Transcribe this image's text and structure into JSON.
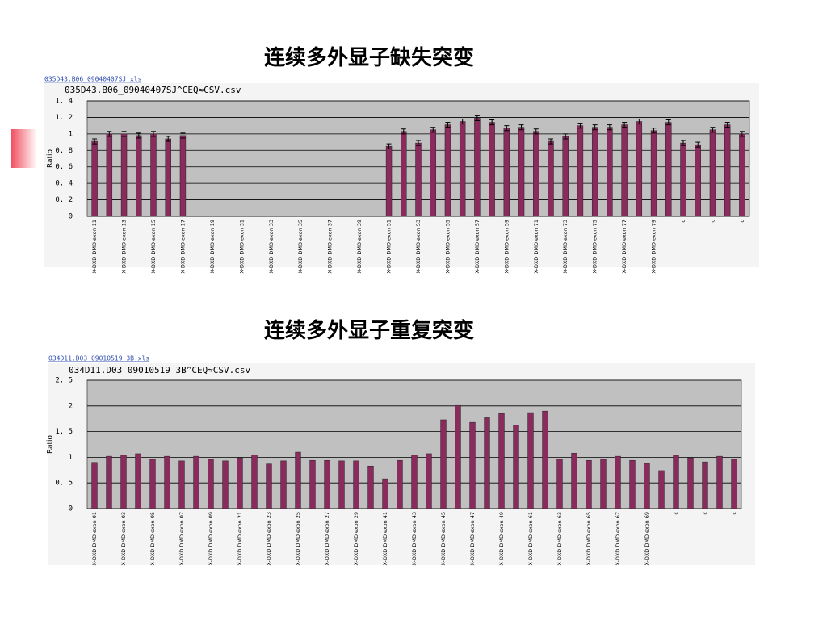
{
  "chart_data": [
    {
      "type": "bar",
      "title": "连续多外显子缺失突变",
      "file_link": "035D43.B06_09040407SJ.xls",
      "subtitle": "035D43.B06_09040407SJ^CEQ≈CSV.csv",
      "y_label": "Ratio",
      "color": "#8b2a5c",
      "categories": [
        "X-DXD DMD exon 11",
        null,
        "X-DXD DMD exon 13",
        null,
        "X-DXD DMD exon 15",
        null,
        "X-DXD DMD exon 17",
        null,
        "X-DXD DMD exon 19",
        null,
        "X-DXD DMD exon 31",
        null,
        "X-DXD DMD exon 33",
        null,
        "X-DXD DMD exon 35",
        null,
        "X-DXD DMD exon 37",
        null,
        "X-DXD DMD exon 39",
        null,
        "X-DXD DMD exon 51",
        null,
        "X-DXD DMD exon 53",
        null,
        "X-DXD DMD exon 55",
        null,
        "X-DXD DMD exon 57",
        null,
        "X-DXD DMD exon 59",
        null,
        "X-DXD DMD exon 71",
        null,
        "X-DXD DMD exon 73",
        null,
        "X-DXD DMD exon 75",
        null,
        "X-DXD DMD exon 77",
        null,
        "X-DXD DMD exon 79",
        null,
        "c",
        null,
        "c",
        null,
        "c"
      ],
      "values": [
        0.91,
        1.0,
        1.0,
        0.98,
        1.0,
        0.94,
        0.98,
        null,
        null,
        null,
        null,
        null,
        null,
        null,
        null,
        null,
        null,
        null,
        null,
        null,
        0.85,
        1.03,
        0.89,
        1.05,
        1.11,
        1.15,
        1.19,
        1.14,
        1.07,
        1.08,
        1.03,
        0.91,
        0.97,
        1.1,
        1.08,
        1.08,
        1.11,
        1.15,
        1.04,
        1.14,
        0.89,
        0.87,
        1.05,
        1.11,
        1.0
      ],
      "errors": [
        0.03,
        0.03,
        0.03,
        0.03,
        0.03,
        0.03,
        0.03,
        null,
        null,
        null,
        null,
        null,
        null,
        null,
        null,
        null,
        null,
        null,
        null,
        null,
        0.03,
        0.03,
        0.03,
        0.03,
        0.03,
        0.03,
        0.03,
        0.03,
        0.03,
        0.03,
        0.03,
        0.03,
        0.03,
        0.03,
        0.03,
        0.03,
        0.03,
        0.03,
        0.03,
        0.03,
        0.03,
        0.03,
        0.03,
        0.03,
        0.03
      ],
      "ylim": [
        0,
        1.4
      ],
      "yticks": [
        0,
        {
          "value": 0.2,
          "label": "0. 2"
        },
        {
          "value": 0.4,
          "label": "0. 4"
        },
        {
          "value": 0.6,
          "label": "0. 6"
        },
        {
          "value": 0.8,
          "label": "0. 8"
        },
        1,
        {
          "value": 1.2,
          "label": "1. 2"
        },
        {
          "value": 1.4,
          "label": "1. 4"
        }
      ],
      "grid": true
    },
    {
      "type": "bar",
      "title": "连续多外显子重复突变",
      "file_link": "034D11.D03_09010519 3B.xls",
      "subtitle": "034D11.D03_09010519 3B^CEQ≈CSV.csv",
      "y_label": "Ratio",
      "color": "#8b2a5c",
      "categories": [
        "X-DXD DMD exon 01",
        null,
        "X-DXD DMD exon 03",
        null,
        "X-DXD DMD exon 05",
        null,
        "X-DXD DMD exon 07",
        null,
        "X-DXD DMD exon 09",
        null,
        "X-DXD DMD exon 21",
        null,
        "X-DXD DMD exon 23",
        null,
        "X-DXD DMD exon 25",
        null,
        "X-DXD DMD exon 27",
        null,
        "X-DXD DMD exon 29",
        null,
        "X-DXD DMD exon 41",
        null,
        "X-DXD DMD exon 43",
        null,
        "X-DXD DMD exon 45",
        null,
        "X-DXD DMD exon 47",
        null,
        "X-DXD DMD exon 49",
        null,
        "X-DXD DMD exon 61",
        null,
        "X-DXD DMD exon 63",
        null,
        "X-DXD DMD exon 65",
        null,
        "X-DXD DMD exon 67",
        null,
        "X-DXD DMD exon 69",
        null,
        "c",
        null,
        "c",
        null,
        "c"
      ],
      "values": [
        0.9,
        1.02,
        1.04,
        1.07,
        0.96,
        1.02,
        0.93,
        1.02,
        0.96,
        0.93,
        0.99,
        1.05,
        0.87,
        0.93,
        1.1,
        0.94,
        0.94,
        0.93,
        0.93,
        0.83,
        0.58,
        0.94,
        1.04,
        1.07,
        1.73,
        2.01,
        1.68,
        1.77,
        1.85,
        1.63,
        1.87,
        1.9,
        0.96,
        1.08,
        0.94,
        0.96,
        1.02,
        0.94,
        0.88,
        0.74,
        1.04,
        0.99,
        0.91,
        1.02,
        0.96
      ],
      "ylim": [
        0,
        2.5
      ],
      "yticks": [
        0,
        {
          "value": 0.5,
          "label": "0. 5"
        },
        1,
        {
          "value": 1.5,
          "label": "1. 5"
        },
        2,
        {
          "value": 2.5,
          "label": "2. 5"
        }
      ],
      "grid": true
    }
  ]
}
